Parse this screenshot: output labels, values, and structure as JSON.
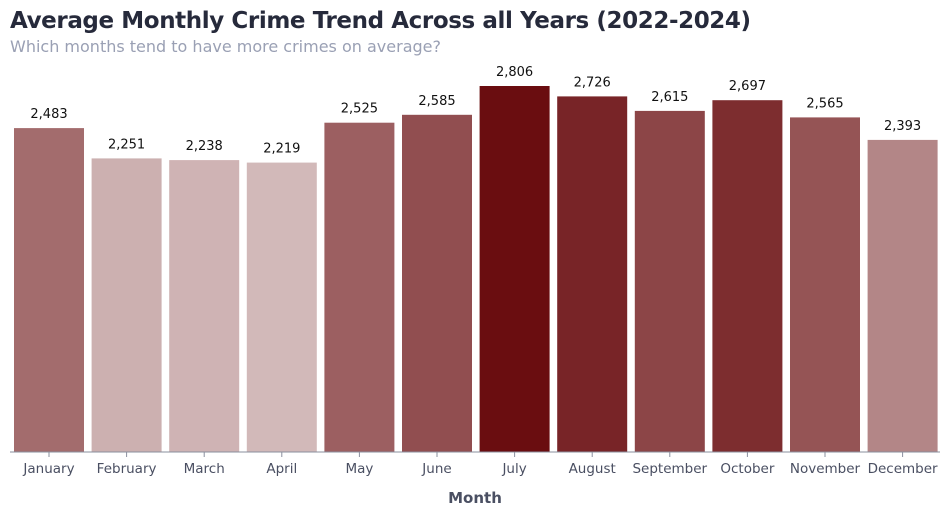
{
  "chart_data": {
    "type": "bar",
    "title": "Average Monthly Crime Trend Across all Years (2022-2024)",
    "subtitle": "Which months tend to have more crimes on average?",
    "xlabel": "Month",
    "ylabel": "",
    "categories": [
      "January",
      "February",
      "March",
      "April",
      "May",
      "June",
      "July",
      "August",
      "September",
      "October",
      "November",
      "December"
    ],
    "values": [
      2483,
      2251,
      2238,
      2219,
      2525,
      2585,
      2806,
      2726,
      2615,
      2697,
      2565,
      2393
    ],
    "value_labels": [
      "2,483",
      "2,251",
      "2,238",
      "2,219",
      "2,525",
      "2,585",
      "2,806",
      "2,726",
      "2,615",
      "2,697",
      "2,565",
      "2,393"
    ],
    "ylim": [
      0,
      2806
    ],
    "grid": false,
    "colors": {
      "low": "#d2b9b9",
      "high": "#6a0d10",
      "axis": "#8a8f9e"
    }
  }
}
